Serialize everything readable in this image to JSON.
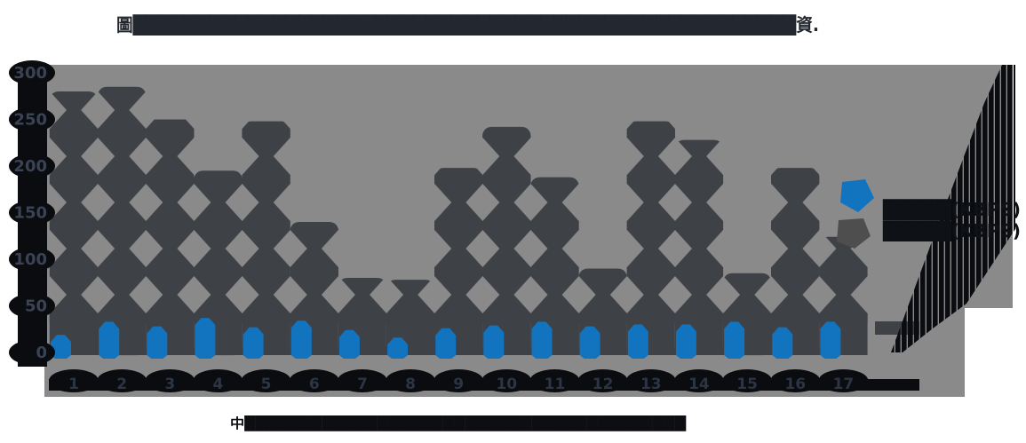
{
  "title": {
    "text": "圖████████████████████████████████████████████████████資."
  },
  "caption": {
    "text": "中████████████████████████████████████████"
  },
  "legend": {
    "items": [
      {
        "label": "█████(KBPS)",
        "color": "#1273BF"
      },
      {
        "label": "█████(KBPS)",
        "color": "#4E4E4E"
      }
    ]
  },
  "axes": {
    "y_ticks": [
      "300",
      "250",
      "200",
      "150",
      "100",
      "50",
      "0"
    ],
    "y_tick_values": [
      300,
      250,
      200,
      150,
      100,
      50,
      0
    ]
  },
  "chart_data": {
    "type": "bar",
    "categories": [
      "1",
      "2",
      "3",
      "4",
      "5",
      "6",
      "7",
      "8",
      "9",
      "10",
      "11",
      "12",
      "13",
      "14",
      "15",
      "16",
      "17"
    ],
    "series": [
      {
        "name": "█████(KBPS)",
        "color": "#1273BF",
        "values": [
          19,
          33,
          28,
          37,
          27,
          34,
          24,
          16,
          26,
          29,
          33,
          28,
          30,
          30,
          33,
          27,
          33
        ]
      },
      {
        "name": "█████(KBPS)",
        "color": "#3E4146",
        "values": [
          280,
          285,
          250,
          195,
          248,
          140,
          80,
          78,
          198,
          242,
          188,
          90,
          248,
          228,
          85,
          198,
          124
        ]
      }
    ],
    "title": "圖████████████████████████████████████████████████████資.",
    "xlabel": "中████████████████████████████████████████",
    "ylabel": "",
    "ylim": [
      0,
      300
    ],
    "y_ticks": [
      0,
      50,
      100,
      150,
      200,
      250,
      300
    ],
    "grid": false,
    "legend_position": "right",
    "colors": {
      "plot_background": "#8A8A8A",
      "bar_dark": "#3E4146",
      "bar_blue": "#1273BF",
      "axis_decor_black": "#0A0C10",
      "y_label_color": "#3A4354",
      "x_label_color": "#2B3544",
      "title_color": "#23272F"
    }
  }
}
